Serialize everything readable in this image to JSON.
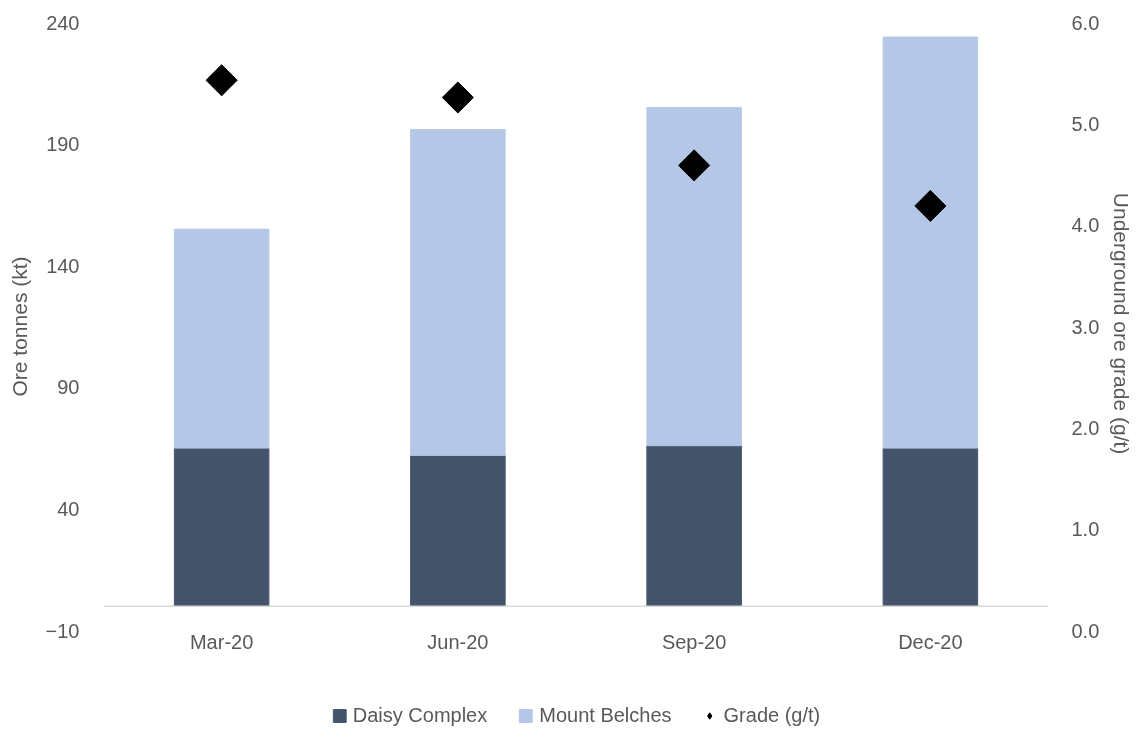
{
  "chart_data": {
    "type": "bar",
    "stacked": true,
    "categories": [
      "Mar-20",
      "Jun-20",
      "Sep-20",
      "Dec-20"
    ],
    "series": [
      {
        "name": "Daisy Complex",
        "color": "#44546a",
        "values": [
          65,
          62,
          66,
          65
        ]
      },
      {
        "name": "Mount Belches",
        "color": "#b4c7e7",
        "values": [
          90,
          134,
          139,
          169
        ]
      },
      {
        "name": "Grade (g/t)",
        "type": "scatter",
        "axis": "y2",
        "color": "#000000",
        "marker": "diamond",
        "values": [
          5.43,
          5.26,
          4.59,
          4.19
        ]
      }
    ],
    "ylabel": "Ore tonnes (kt)",
    "y2label": "Underground ore grade  (g/t)",
    "ylim": [
      -10,
      240
    ],
    "yticks": [
      -10,
      40,
      90,
      140,
      190,
      240
    ],
    "y2lim": [
      0,
      6
    ],
    "y2ticks": [
      {
        "value": 0,
        "label": "0.0"
      },
      {
        "value": 1,
        "label": "1.0"
      },
      {
        "value": 2,
        "label": "2.0"
      },
      {
        "value": 3,
        "label": "3.0"
      },
      {
        "value": 4,
        "label": "4.0"
      },
      {
        "value": 5,
        "label": "5.0"
      },
      {
        "value": 6,
        "label": "6.0"
      }
    ],
    "grid": false,
    "legend": "bottom"
  }
}
